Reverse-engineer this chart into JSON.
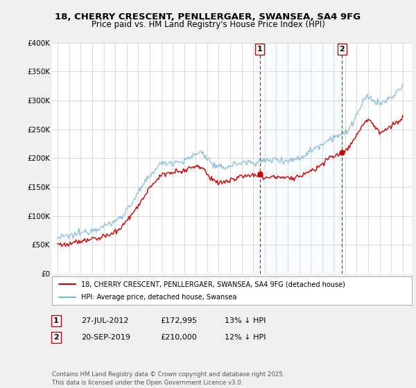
{
  "title_line1": "18, CHERRY CRESCENT, PENLLERGAER, SWANSEA, SA4 9FG",
  "title_line2": "Price paid vs. HM Land Registry's House Price Index (HPI)",
  "ylabel_ticks": [
    "£0",
    "£50K",
    "£100K",
    "£150K",
    "£200K",
    "£250K",
    "£300K",
    "£350K",
    "£400K"
  ],
  "ytick_values": [
    0,
    50000,
    100000,
    150000,
    200000,
    250000,
    300000,
    350000,
    400000
  ],
  "ylim": [
    0,
    400000
  ],
  "xlim_start": 1994.5,
  "xlim_end": 2025.8,
  "hpi_color": "#7ab4d8",
  "price_color": "#cc0000",
  "marker1_x": 2012.57,
  "marker1_y": 172995,
  "marker1_label": "1",
  "marker2_x": 2019.72,
  "marker2_y": 210000,
  "marker2_label": "2",
  "vline_color": "#cc0000",
  "legend_entry1": "18, CHERRY CRESCENT, PENLLERGAER, SWANSEA, SA4 9FG (detached house)",
  "legend_entry2": "HPI: Average price, detached house, Swansea",
  "table_row1": [
    "1",
    "27-JUL-2012",
    "£172,995",
    "13% ↓ HPI"
  ],
  "table_row2": [
    "2",
    "20-SEP-2019",
    "£210,000",
    "12% ↓ HPI"
  ],
  "footer": "Contains HM Land Registry data © Crown copyright and database right 2025.\nThis data is licensed under the Open Government Licence v3.0.",
  "bg_color": "#f0f0f0",
  "plot_bg_color": "#ffffff",
  "highlight_bg_color": "#ddeeff",
  "grid_color": "#cccccc"
}
